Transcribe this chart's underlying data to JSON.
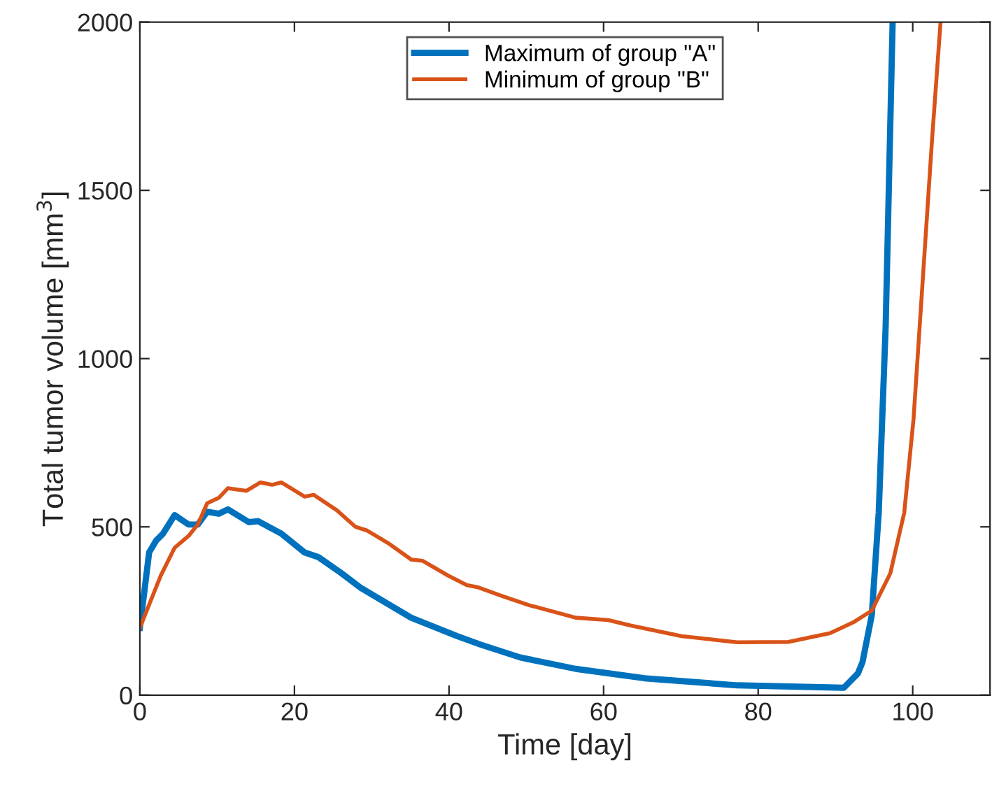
{
  "chart_data": {
    "type": "line",
    "xlabel": "Time [day]",
    "ylabel": "Total tumor volume [mm$^{3}$]",
    "xlim": [
      0,
      110
    ],
    "ylim": [
      0,
      2000
    ],
    "xticks": [
      0,
      20,
      40,
      60,
      80,
      100
    ],
    "yticks": [
      0,
      500,
      1000,
      1500,
      2000
    ],
    "grid": false,
    "legend": "top",
    "line_style": "solid",
    "marker": "none",
    "series": [
      {
        "name": "Maximum of group \"A\"",
        "color": "#0072bd",
        "x": [
          0,
          1.2,
          2.1,
          3.0,
          4.5,
          6.3,
          7.5,
          8.7,
          10.2,
          11.4,
          14.1,
          15.3,
          18.3,
          21.3,
          23.1,
          26.1,
          28.5,
          35.1,
          41.1,
          44.1,
          49.2,
          56.4,
          65.3,
          77.3,
          91.1,
          92.9,
          93.5,
          94.7,
          95.6,
          96.5,
          97.4
        ],
        "values": [
          200,
          424,
          459,
          480,
          535,
          507,
          507,
          545,
          539,
          552,
          514,
          517,
          480,
          424,
          410,
          362,
          320,
          230,
          175,
          150,
          112,
          78,
          50,
          29,
          22,
          64,
          98,
          237,
          542,
          1097,
          2000
        ]
      },
      {
        "name": "Minimum of group \"B\"",
        "color": "#d95319",
        "x": [
          0,
          2.7,
          4.5,
          6.3,
          7.5,
          8.7,
          10.2,
          11.4,
          13.8,
          15.6,
          17.1,
          18.3,
          21.3,
          22.5,
          25.5,
          27.9,
          29.4,
          32.1,
          35.1,
          36.6,
          39.9,
          42.3,
          43.8,
          46.8,
          50.4,
          56.4,
          60.6,
          63.5,
          70.1,
          77.3,
          83.9,
          89.3,
          92.3,
          94.7,
          97.1,
          98.9,
          100.1,
          101.3,
          102.5,
          103.6
        ],
        "values": [
          200,
          355,
          438,
          473,
          507,
          570,
          586,
          615,
          607,
          632,
          625,
          632,
          590,
          595,
          549,
          500,
          489,
          452,
          403,
          399,
          355,
          327,
          320,
          295,
          267,
          230,
          223,
          207,
          175,
          157,
          158,
          184,
          216,
          251,
          362,
          542,
          819,
          1235,
          1651,
          2000
        ]
      }
    ]
  }
}
